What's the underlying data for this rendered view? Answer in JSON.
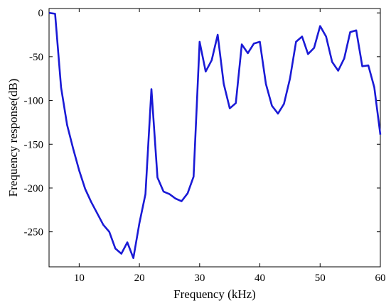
{
  "chart_data": {
    "type": "line",
    "title": "",
    "xlabel": "Frequency (kHz)",
    "ylabel": "Frequency response(dB)",
    "xlim": [
      5,
      60
    ],
    "ylim": [
      -290,
      5
    ],
    "xticks": [
      10,
      20,
      30,
      40,
      50,
      60
    ],
    "yticks": [
      0,
      -50,
      -100,
      -150,
      -200,
      -250
    ],
    "grid": false,
    "line_color": "#1a1ad6",
    "series": [
      {
        "x": [
          5,
          6,
          7,
          8,
          9,
          10,
          11,
          12,
          13,
          14,
          15,
          16,
          17,
          18,
          19,
          20,
          21,
          22,
          23,
          24,
          25,
          26,
          27,
          28,
          29,
          30,
          31,
          32,
          33,
          34,
          35,
          36,
          37,
          38,
          39,
          40,
          41,
          42,
          43,
          44,
          45,
          46,
          47,
          48,
          49,
          50,
          51,
          52,
          53,
          54,
          55,
          56,
          57,
          58,
          59,
          60
        ],
        "values": [
          0,
          -1,
          -85,
          -128,
          -155,
          -180,
          -201,
          -216,
          -229,
          -242,
          -250,
          -269,
          -275,
          -262,
          -280,
          -240,
          -207,
          -87,
          -188,
          -204,
          -207,
          -212,
          -215,
          -206,
          -187,
          -33,
          -67,
          -54,
          -25,
          -81,
          -109,
          -103,
          -36,
          -46,
          -35,
          -33,
          -81,
          -106,
          -115,
          -104,
          -75,
          -33,
          -27,
          -47,
          -40,
          -15,
          -27,
          -56,
          -66,
          -52,
          -22,
          -20,
          -61,
          -60,
          -85,
          -139
        ]
      }
    ]
  }
}
